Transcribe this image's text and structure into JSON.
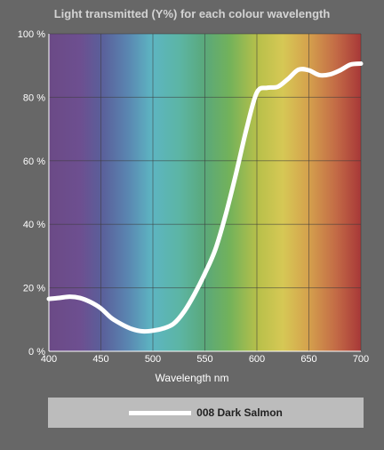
{
  "chart_data": {
    "type": "line",
    "title": "Light transmitted (Y%) for each colour wavelength",
    "xlabel": "Wavelength nm",
    "ylabel": "",
    "xlim": [
      400,
      700
    ],
    "ylim": [
      0,
      100
    ],
    "x_ticks": [
      "400",
      "450",
      "500",
      "550",
      "600",
      "650",
      "700"
    ],
    "y_ticks": [
      "0 %",
      "20 %",
      "40 %",
      "60 %",
      "80 %",
      "100 %"
    ],
    "grid": true,
    "legend_position": "bottom",
    "series": [
      {
        "name": "008 Dark Salmon",
        "color": "#ffffff",
        "x": [
          400,
          410,
          420,
          430,
          440,
          450,
          460,
          470,
          480,
          490,
          500,
          510,
          520,
          530,
          540,
          550,
          560,
          570,
          580,
          590,
          600,
          610,
          620,
          630,
          640,
          650,
          660,
          670,
          680,
          690,
          700
        ],
        "y": [
          16.5,
          16.8,
          17.2,
          16.8,
          15.5,
          13.5,
          10.5,
          8.5,
          7,
          6.3,
          6.5,
          7.2,
          8.7,
          12.5,
          18,
          24.5,
          32,
          43,
          56,
          70,
          81.5,
          83,
          83.3,
          85.8,
          88.7,
          88.5,
          87,
          87.2,
          88.5,
          90.3,
          90.6
        ]
      }
    ]
  }
}
